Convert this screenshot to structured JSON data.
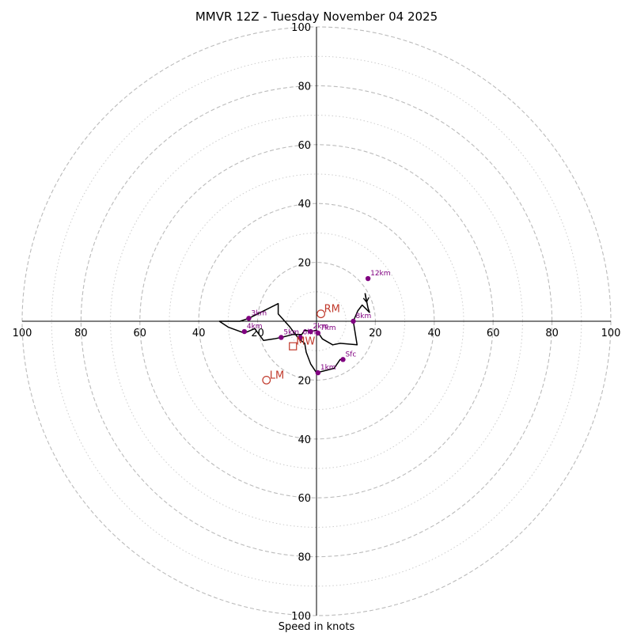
{
  "chart_data": {
    "type": "scatter",
    "subtype": "hodograph",
    "title": "MMVR 12Z - Tuesday November 04 2025",
    "xlabel": "Speed in knots",
    "ylabel": "",
    "xlim": [
      -100,
      100
    ],
    "ylim": [
      -100,
      100
    ],
    "major_rings": [
      20,
      40,
      60,
      80,
      100
    ],
    "minor_rings": [
      10,
      30,
      50,
      70,
      90
    ],
    "tick_labels": [
      "100",
      "80",
      "60",
      "40",
      "20",
      "20",
      "40",
      "60",
      "80",
      "100"
    ],
    "y_tick_values": [
      100,
      80,
      60,
      40,
      20,
      -20,
      -40,
      -60,
      -80,
      -100
    ],
    "x_tick_values": [
      -100,
      -80,
      -60,
      -40,
      -20,
      20,
      40,
      60,
      80,
      100
    ],
    "colors": {
      "trace": "#000000",
      "height_marker": "#800080",
      "motion_marker": "#c0392b",
      "major_ring": "#bbbbbb",
      "minor_ring": "#cccccc",
      "axis": "#000000"
    },
    "trace": [
      [
        16.5,
        9.5
      ],
      [
        17.5,
        4.5
      ],
      [
        18,
        3
      ],
      [
        15.5,
        5.5
      ],
      [
        14,
        3.5
      ],
      [
        12.5,
        0
      ],
      [
        13.8,
        -8
      ],
      [
        8,
        -7.5
      ],
      [
        5.5,
        -8
      ],
      [
        2,
        -6
      ],
      [
        0,
        -3
      ],
      [
        -2,
        -3.5
      ],
      [
        -4,
        -3
      ],
      [
        -5,
        -4.5
      ],
      [
        -8,
        -4.5
      ],
      [
        -12,
        -5.5
      ],
      [
        -14.5,
        -6
      ],
      [
        -18,
        -6.5
      ],
      [
        -21,
        -2.5
      ],
      [
        -24.5,
        -4
      ],
      [
        -30,
        -2
      ],
      [
        -33,
        0
      ],
      [
        -26,
        0
      ],
      [
        -23,
        1
      ],
      [
        -13,
        6
      ],
      [
        -13,
        2.5
      ],
      [
        -9,
        -2
      ],
      [
        -6,
        -6
      ],
      [
        -4,
        -7.5
      ],
      [
        -3.5,
        -10.5
      ],
      [
        -2,
        -14.5
      ],
      [
        0,
        -17.5
      ],
      [
        6,
        -16
      ],
      [
        8,
        -13
      ],
      [
        9,
        -13
      ]
    ],
    "barb": {
      "from": [
        16.5,
        9.5
      ],
      "to": [
        17,
        6.5
      ]
    },
    "height_points": [
      {
        "label": "Sfc",
        "u": 9,
        "v": -13
      },
      {
        "label": "1km",
        "u": 0.5,
        "v": -17.5
      },
      {
        "label": "2km",
        "u": -2,
        "v": -3.5
      },
      {
        "label": "3km",
        "u": -23,
        "v": 1
      },
      {
        "label": "4km",
        "u": -24.5,
        "v": -3.5
      },
      {
        "label": "5km",
        "u": -12,
        "v": -5.5
      },
      {
        "label": "6km",
        "u": -5.5,
        "v": -5.5
      },
      {
        "label": "7km",
        "u": 0.5,
        "v": -4
      },
      {
        "label": "8km",
        "u": 12.5,
        "v": 0
      },
      {
        "label": "12km",
        "u": 17.5,
        "v": 14.5
      }
    ],
    "storm_motion": [
      {
        "label": "RM",
        "marker": "circle",
        "u": 1.5,
        "v": 2.5
      },
      {
        "label": "LM",
        "marker": "circle",
        "u": -17,
        "v": -20
      },
      {
        "label": "MW",
        "marker": "square",
        "u": -8,
        "v": -8.5
      }
    ]
  }
}
